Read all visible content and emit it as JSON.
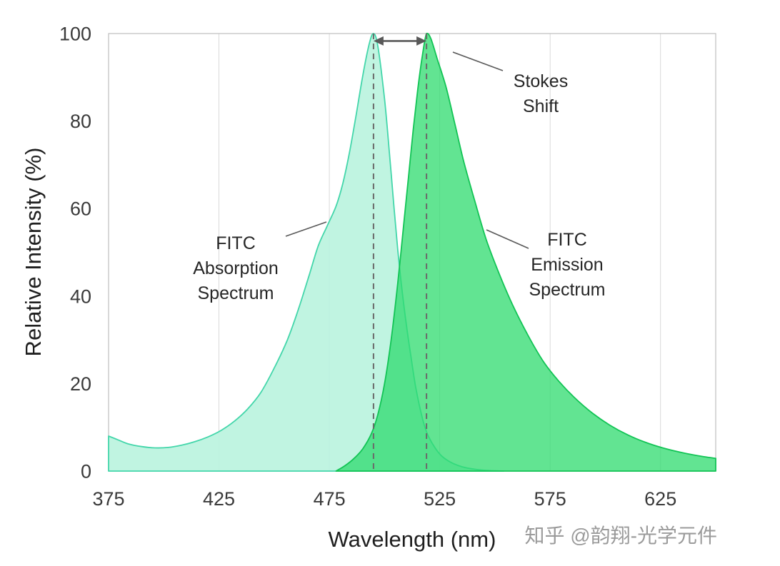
{
  "watermark": "知乎 @韵翔-光学元件",
  "chart_data": {
    "type": "area",
    "title": "",
    "xlabel": "Wavelength (nm)",
    "ylabel": "Relative Intensity (%)",
    "xlim": [
      375,
      650
    ],
    "ylim": [
      0,
      100
    ],
    "xticks": [
      375,
      425,
      475,
      525,
      575,
      625
    ],
    "yticks": [
      0,
      20,
      40,
      60,
      80,
      100
    ],
    "grid": "vertical gridlines only",
    "legend_position": "none",
    "series": [
      {
        "name": "FITC Absorption Spectrum",
        "data_name": "absorption-spectrum-area",
        "peak_nm": 495,
        "fill": "#b9f3de",
        "fill_opacity": 0.9,
        "stroke": "#43d6aa",
        "points": [
          [
            375,
            8
          ],
          [
            379,
            7.2
          ],
          [
            384,
            6.2
          ],
          [
            390,
            5.6
          ],
          [
            396,
            5.3
          ],
          [
            402,
            5.4
          ],
          [
            408,
            5.9
          ],
          [
            414,
            6.7
          ],
          [
            420,
            7.8
          ],
          [
            426,
            9.3
          ],
          [
            432,
            11.4
          ],
          [
            438,
            14.2
          ],
          [
            444,
            18
          ],
          [
            450,
            23.5
          ],
          [
            456,
            30
          ],
          [
            461,
            37
          ],
          [
            466,
            45
          ],
          [
            470,
            51.5
          ],
          [
            474,
            56
          ],
          [
            478,
            60.5
          ],
          [
            481,
            65.5
          ],
          [
            484,
            72.5
          ],
          [
            487,
            81
          ],
          [
            490,
            90
          ],
          [
            493,
            97.5
          ],
          [
            495,
            100
          ],
          [
            497,
            97
          ],
          [
            500,
            85
          ],
          [
            502,
            74
          ],
          [
            504,
            62
          ],
          [
            506,
            50.5
          ],
          [
            508,
            41
          ],
          [
            510,
            33
          ],
          [
            512,
            26
          ],
          [
            514,
            19.5
          ],
          [
            516,
            14.5
          ],
          [
            518,
            10.5
          ],
          [
            520,
            7.8
          ],
          [
            523,
            5.2
          ],
          [
            526,
            3.4
          ],
          [
            530,
            2
          ],
          [
            535,
            1
          ],
          [
            541,
            0.4
          ],
          [
            548,
            0.1
          ],
          [
            554,
            0
          ]
        ]
      },
      {
        "name": "FITC Emission Spectrum",
        "data_name": "emission-spectrum-area",
        "peak_nm": 519,
        "fill": "#2edb6e",
        "fill_opacity": 0.75,
        "stroke": "#12c455",
        "points": [
          [
            478,
            0
          ],
          [
            482,
            1.2
          ],
          [
            486,
            2.8
          ],
          [
            490,
            5
          ],
          [
            494,
            8.5
          ],
          [
            497,
            13
          ],
          [
            500,
            20
          ],
          [
            503,
            30
          ],
          [
            506,
            43
          ],
          [
            509,
            58
          ],
          [
            511,
            68
          ],
          [
            513,
            78
          ],
          [
            515,
            87
          ],
          [
            517,
            94.5
          ],
          [
            519,
            100
          ],
          [
            521,
            98.8
          ],
          [
            524,
            94
          ],
          [
            528,
            87.5
          ],
          [
            532,
            79
          ],
          [
            536,
            70.5
          ],
          [
            541,
            61.5
          ],
          [
            546,
            53
          ],
          [
            552,
            45
          ],
          [
            558,
            38
          ],
          [
            565,
            31
          ],
          [
            572,
            25
          ],
          [
            579,
            20.5
          ],
          [
            586,
            16.8
          ],
          [
            594,
            13.3
          ],
          [
            602,
            10.5
          ],
          [
            610,
            8.3
          ],
          [
            618,
            6.6
          ],
          [
            626,
            5.3
          ],
          [
            634,
            4.3
          ],
          [
            642,
            3.5
          ],
          [
            650,
            2.9
          ]
        ]
      }
    ],
    "stokes_shift": {
      "from_nm": 495,
      "to_nm": 519,
      "label": "Stokes Shift"
    },
    "annotations": [
      {
        "id": "stokes-shift-label",
        "lines": [
          "Stokes",
          "Shift"
        ]
      },
      {
        "id": "absorption-label",
        "lines": [
          "FITC",
          "Absorption",
          "Spectrum"
        ]
      },
      {
        "id": "emission-label",
        "lines": [
          "FITC",
          "Emission",
          "Spectrum"
        ]
      }
    ]
  }
}
